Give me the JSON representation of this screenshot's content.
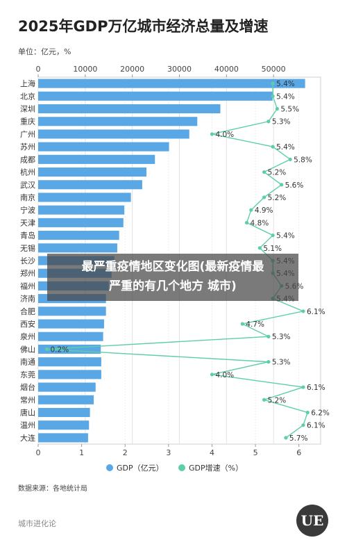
{
  "header": {
    "title": "2025年GDP万亿城市经济总量及增速",
    "units": "单位：亿元，%"
  },
  "overlay": {
    "line1": "最严重疫情地区变化图(最新疫情最",
    "line2": "严重的有几个地方 城市)"
  },
  "footer": {
    "source": "数据来源：各地统计局",
    "brand": "城市进化论",
    "logo_text": "UE"
  },
  "chart_data": {
    "type": "bar",
    "orientation": "horizontal",
    "categories": [
      "上海",
      "北京",
      "深圳",
      "重庆",
      "广州",
      "苏州",
      "成都",
      "杭州",
      "武汉",
      "南京",
      "宁波",
      "天津",
      "青岛",
      "无锡",
      "长沙",
      "郑州",
      "福州",
      "济南",
      "合肥",
      "西安",
      "泉州",
      "佛山",
      "南通",
      "东莞",
      "烟台",
      "常州",
      "唐山",
      "温州",
      "大连"
    ],
    "series": [
      {
        "name": "GDP（亿元）",
        "axis": "top",
        "color": "#5aa7e6",
        "values": [
          56700,
          49800,
          38700,
          33800,
          32100,
          27800,
          24800,
          23000,
          22100,
          19700,
          18300,
          18100,
          17200,
          16800,
          16200,
          15600,
          15000,
          14400,
          14400,
          14000,
          13800,
          13300,
          13400,
          13400,
          12200,
          11800,
          11000,
          10800,
          10600
        ]
      },
      {
        "name": "GDP增速（%）",
        "axis": "bottom",
        "color": "#5dcfa4",
        "values": [
          5.4,
          5.4,
          5.5,
          5.3,
          4.0,
          5.4,
          5.8,
          5.2,
          5.6,
          5.2,
          4.9,
          4.8,
          5.4,
          5.1,
          5.4,
          5.4,
          5.6,
          5.4,
          6.1,
          4.7,
          5.3,
          0.2,
          5.3,
          4.0,
          6.1,
          5.2,
          6.2,
          6.1,
          5.7
        ],
        "labels": [
          "5.4%",
          "5.4%",
          "5.5%",
          "5.3%",
          "4.0%",
          "5.4%",
          "5.8%",
          "5.2%",
          "5.6%",
          "5.2%",
          "4.9%",
          "4.8%",
          "5.4%",
          "5.1%",
          "5.4%",
          "5.4%",
          "5.6%",
          "5.4%",
          "6.1%",
          "4.7%",
          "5.3%",
          "0.2%",
          "5.3%",
          "4.0%",
          "6.1%",
          "5.2%",
          "6.2%",
          "6.1%",
          "5.7%"
        ]
      }
    ],
    "top_axis": {
      "range": [
        0,
        60000
      ],
      "ticks": [
        "0",
        "10000",
        "20000",
        "30000",
        "40000",
        "50000"
      ]
    },
    "bottom_axis": {
      "range": [
        0,
        6.5
      ],
      "ticks": [
        "0",
        "1",
        "2",
        "3",
        "4",
        "5",
        "6"
      ]
    },
    "grid": true,
    "legend_position": "bottom"
  }
}
